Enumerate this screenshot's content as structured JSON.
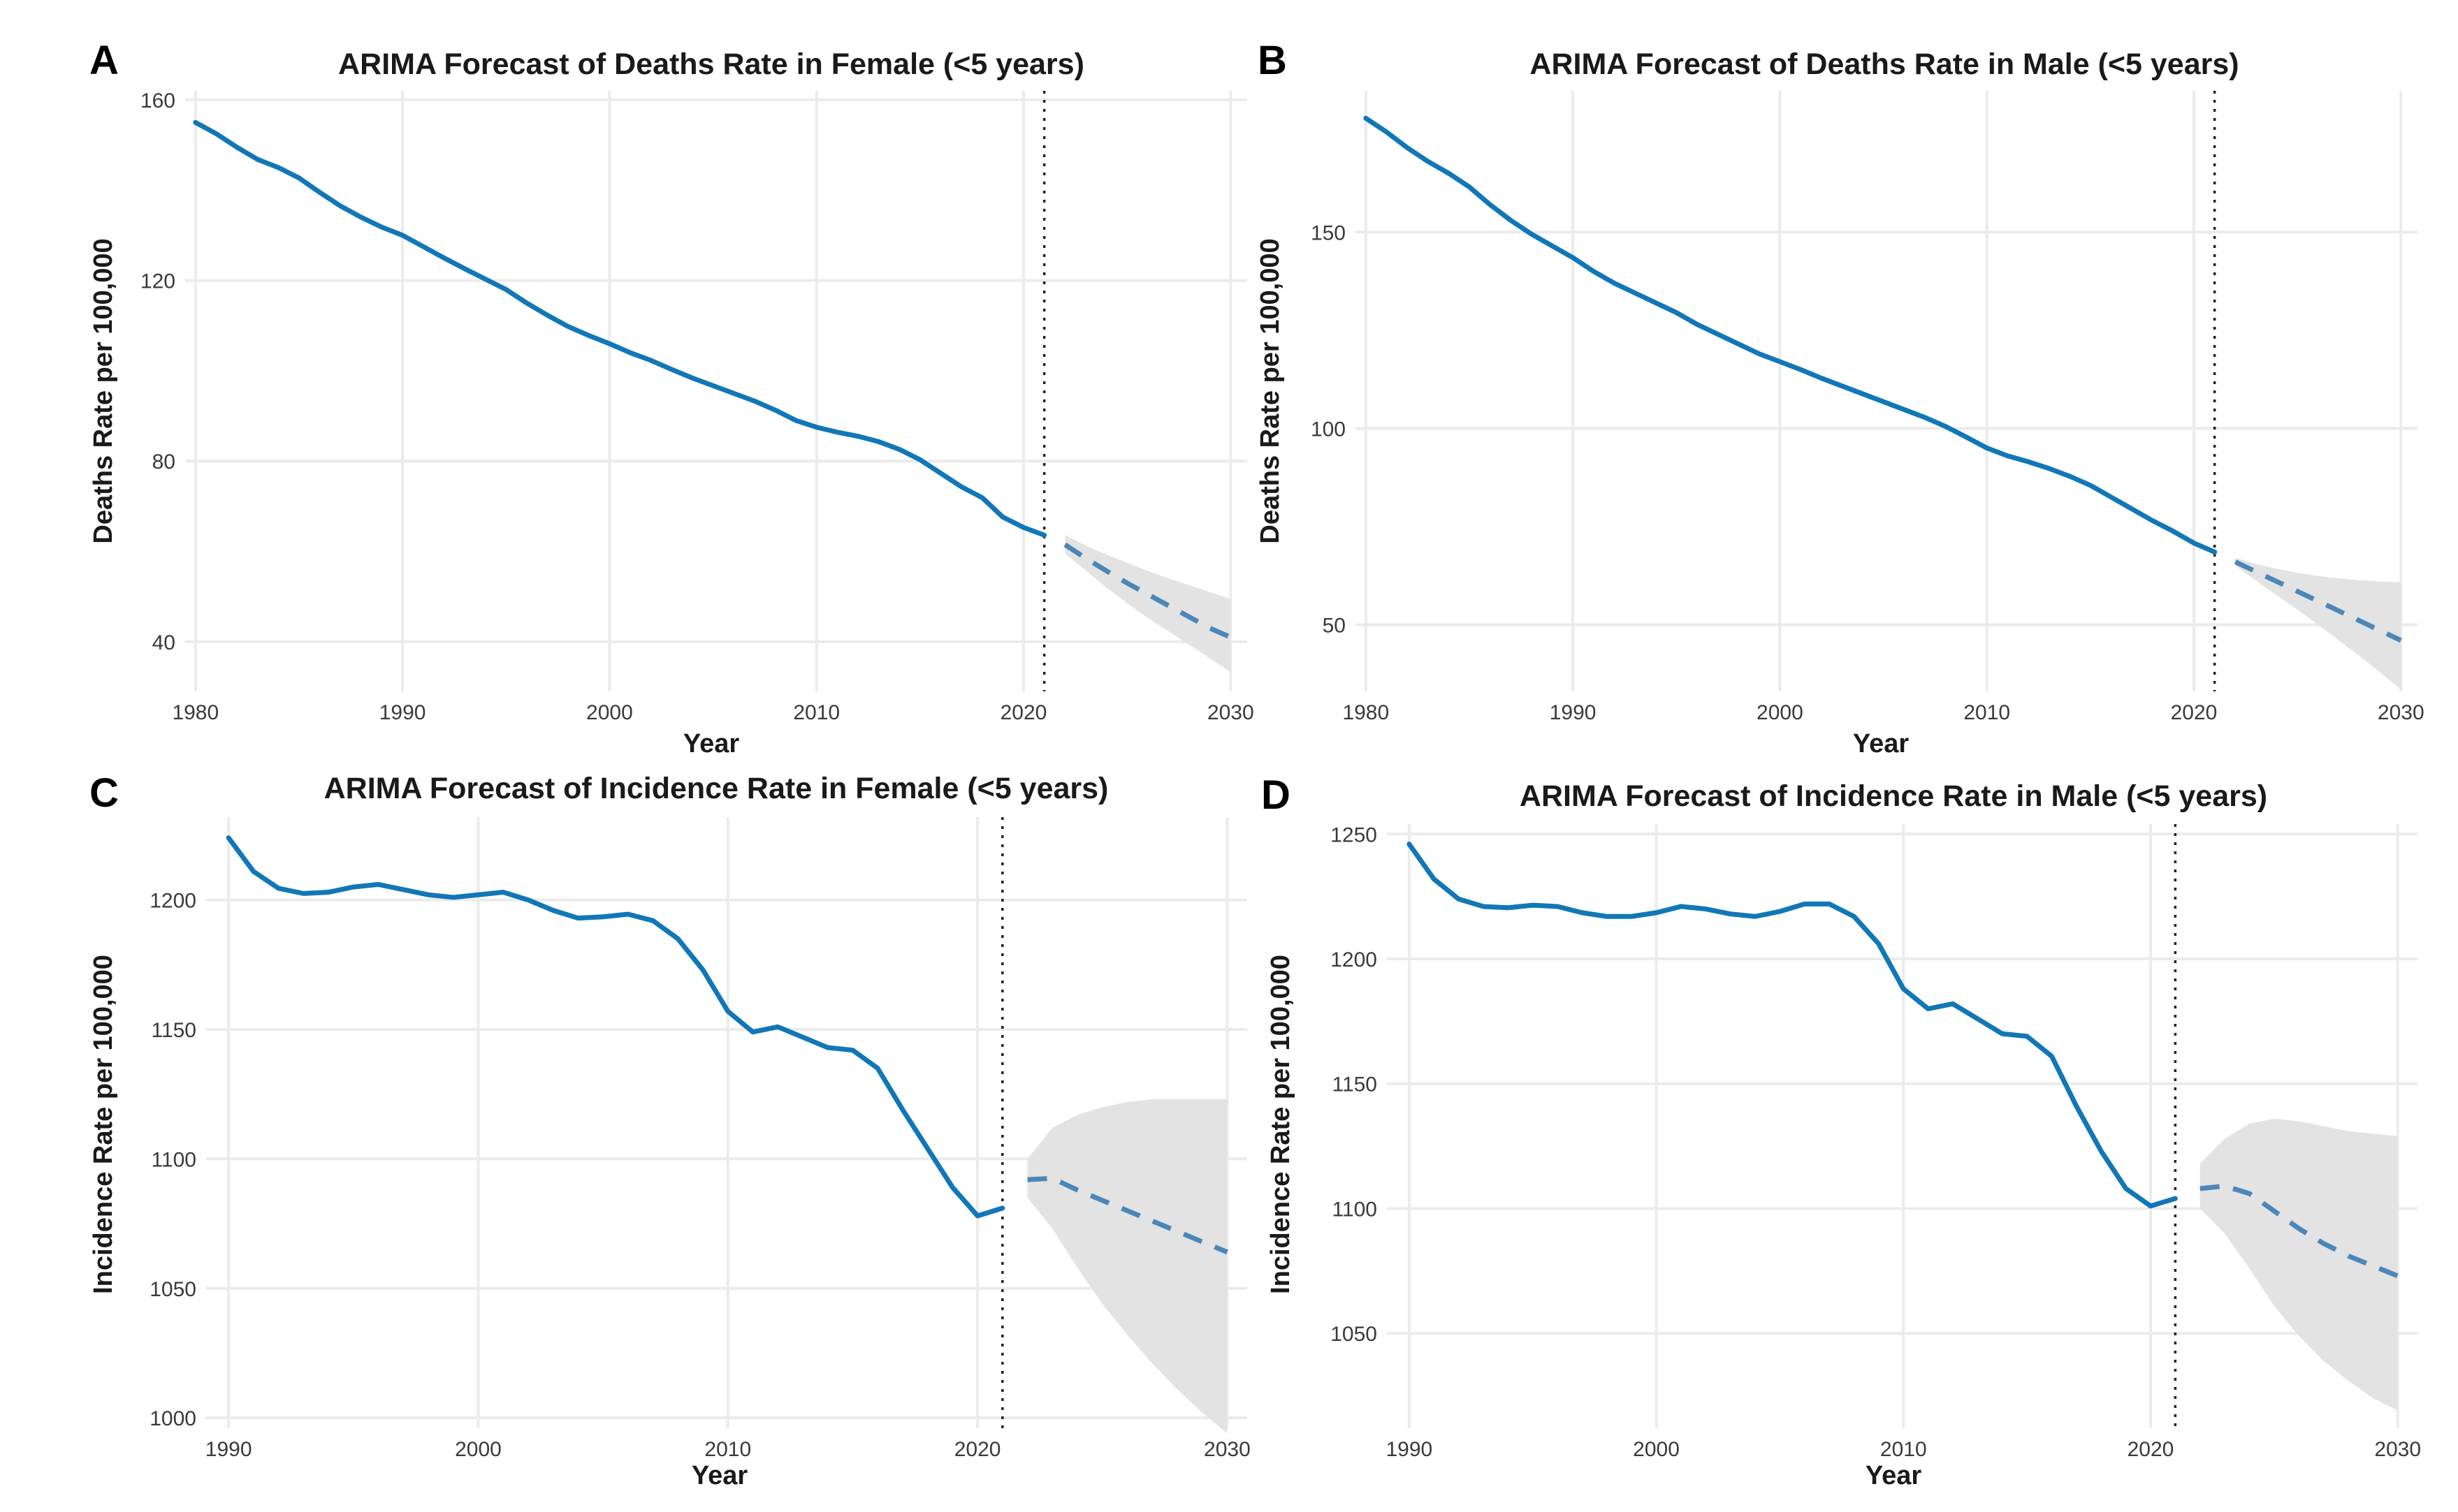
{
  "colors": {
    "history": "#1177b7",
    "forecast": "#4b86b8",
    "ci": "#e3e3e3"
  },
  "chart_data": [
    {
      "panel": "A",
      "type": "line",
      "title": "ARIMA Forecast of Deaths Rate in Female (<5 years)",
      "xlabel": "Year",
      "ylabel": "Deaths Rate per 100,000",
      "xlim": [
        1979.5,
        2030.8
      ],
      "ylim": [
        29,
        162
      ],
      "xticks": [
        1980,
        1990,
        2000,
        2010,
        2020,
        2030
      ],
      "yticks": [
        40,
        80,
        120,
        160
      ],
      "forecast_start": 2021,
      "history": {
        "x": [
          1980,
          1981,
          1982,
          1983,
          1984,
          1985,
          1986,
          1987,
          1988,
          1989,
          1990,
          1991,
          1992,
          1993,
          1994,
          1995,
          1996,
          1997,
          1998,
          1999,
          2000,
          2001,
          2002,
          2003,
          2004,
          2005,
          2006,
          2007,
          2008,
          2009,
          2010,
          2011,
          2012,
          2013,
          2014,
          2015,
          2016,
          2017,
          2018,
          2019,
          2020,
          2021
        ],
        "y": [
          155.0,
          152.5,
          149.5,
          146.8,
          145.0,
          142.7,
          139.5,
          136.5,
          134.0,
          131.8,
          130.0,
          127.5,
          125.0,
          122.6,
          120.3,
          118.0,
          115.0,
          112.3,
          109.8,
          107.8,
          106.0,
          104.0,
          102.3,
          100.3,
          98.4,
          96.7,
          95.0,
          93.3,
          91.3,
          89.0,
          87.5,
          86.4,
          85.5,
          84.3,
          82.6,
          80.3,
          77.3,
          74.3,
          71.9,
          67.6,
          65.3,
          63.6
        ]
      },
      "forecast": {
        "x": [
          2022,
          2023,
          2024,
          2025,
          2026,
          2027,
          2028,
          2029,
          2030
        ],
        "mean": [
          61.5,
          58.5,
          55.7,
          53.0,
          50.5,
          48.0,
          45.5,
          43.0,
          41.0
        ],
        "upper": [
          63.6,
          61.3,
          59.3,
          57.5,
          55.7,
          54.0,
          52.5,
          51.0,
          49.5
        ],
        "lower": [
          59.5,
          55.8,
          52.0,
          48.5,
          45.3,
          42.3,
          39.3,
          36.3,
          33.3
        ]
      }
    },
    {
      "panel": "B",
      "type": "line",
      "title": "ARIMA Forecast of Deaths Rate in Male (<5 years)",
      "xlabel": "Year",
      "ylabel": "Deaths Rate per 100,000",
      "xlim": [
        1979.5,
        2030.8
      ],
      "ylim": [
        33,
        186
      ],
      "xticks": [
        1980,
        1990,
        2000,
        2010,
        2020,
        2030
      ],
      "yticks": [
        50,
        100,
        150
      ],
      "forecast_start": 2021,
      "history": {
        "x": [
          1980,
          1981,
          1982,
          1983,
          1984,
          1985,
          1986,
          1987,
          1988,
          1989,
          1990,
          1991,
          1992,
          1993,
          1994,
          1995,
          1996,
          1997,
          1998,
          1999,
          2000,
          2001,
          2002,
          2003,
          2004,
          2005,
          2006,
          2007,
          2008,
          2009,
          2010,
          2011,
          2012,
          2013,
          2014,
          2015,
          2016,
          2017,
          2018,
          2019,
          2020,
          2021
        ],
        "y": [
          179.0,
          175.5,
          171.5,
          168.0,
          165.0,
          161.5,
          157.0,
          153.0,
          149.5,
          146.5,
          143.5,
          140.0,
          137.0,
          134.5,
          132.0,
          129.5,
          126.5,
          124.0,
          121.5,
          119.0,
          117.0,
          115.0,
          112.8,
          110.8,
          108.8,
          106.8,
          104.8,
          102.8,
          100.5,
          97.8,
          95.0,
          93.0,
          91.5,
          89.8,
          87.8,
          85.5,
          82.5,
          79.5,
          76.5,
          73.8,
          70.8,
          68.5
        ]
      },
      "forecast": {
        "x": [
          2022,
          2023,
          2024,
          2025,
          2026,
          2027,
          2028,
          2029,
          2030
        ],
        "mean": [
          66.0,
          63.5,
          61.0,
          58.5,
          56.0,
          53.5,
          51.0,
          48.5,
          46.0
        ],
        "upper": [
          67.0,
          65.5,
          64.3,
          63.2,
          62.4,
          61.8,
          61.3,
          61.0,
          60.8
        ],
        "lower": [
          65.0,
          61.2,
          57.5,
          53.8,
          50.0,
          46.0,
          42.0,
          37.8,
          33.5
        ]
      }
    },
    {
      "panel": "C",
      "type": "line",
      "title": "ARIMA Forecast of Incidence Rate in Female (<5 years)",
      "xlabel": "Year",
      "ylabel": "Incidence Rate per 100,000",
      "xlim": [
        1989.1,
        2030.8
      ],
      "ylim": [
        996,
        1232
      ],
      "xticks": [
        1990,
        2000,
        2010,
        2020,
        2030
      ],
      "yticks": [
        1000,
        1050,
        1100,
        1150,
        1200
      ],
      "forecast_start": 2021,
      "history": {
        "x": [
          1990,
          1991,
          1992,
          1993,
          1994,
          1995,
          1996,
          1997,
          1998,
          1999,
          2000,
          2001,
          2002,
          2003,
          2004,
          2005,
          2006,
          2007,
          2008,
          2009,
          2010,
          2011,
          2012,
          2013,
          2014,
          2015,
          2016,
          2017,
          2018,
          2019,
          2020,
          2021
        ],
        "y": [
          1224,
          1211,
          1204.5,
          1202.5,
          1203,
          1205,
          1206,
          1204,
          1202,
          1201,
          1202,
          1203,
          1200,
          1196,
          1193,
          1193.5,
          1194.5,
          1192,
          1185,
          1173,
          1157,
          1149,
          1151,
          1147,
          1143,
          1142,
          1135,
          1119,
          1104,
          1089,
          1078,
          1081
        ]
      },
      "forecast": {
        "x": [
          2022,
          2023,
          2024,
          2025,
          2026,
          2027,
          2028,
          2029,
          2030
        ],
        "mean": [
          1092,
          1092.5,
          1088,
          1084,
          1080,
          1076,
          1072,
          1068,
          1064
        ],
        "upper": [
          1100,
          1112,
          1117,
          1120,
          1122,
          1123,
          1123,
          1123,
          1123
        ],
        "lower": [
          1085,
          1073,
          1058,
          1044,
          1032,
          1021,
          1011,
          1002,
          994
        ]
      }
    },
    {
      "panel": "D",
      "type": "line",
      "title": "ARIMA Forecast of Incidence Rate in Male (<5 years)",
      "xlabel": "Year",
      "ylabel": "Incidence Rate per 100,000",
      "xlim": [
        1989.1,
        2030.8
      ],
      "ylim": [
        1012,
        1254
      ],
      "xticks": [
        1990,
        2000,
        2010,
        2020,
        2030
      ],
      "yticks": [
        1050,
        1100,
        1150,
        1200,
        1250
      ],
      "forecast_start": 2021,
      "history": {
        "x": [
          1990,
          1991,
          1992,
          1993,
          1994,
          1995,
          1996,
          1997,
          1998,
          1999,
          2000,
          2001,
          2002,
          2003,
          2004,
          2005,
          2006,
          2007,
          2008,
          2009,
          2010,
          2011,
          2012,
          2013,
          2014,
          2015,
          2016,
          2017,
          2018,
          2019,
          2020,
          2021
        ],
        "y": [
          1246,
          1232,
          1224,
          1221,
          1220.5,
          1221.5,
          1221,
          1218.5,
          1217,
          1217,
          1218.5,
          1221,
          1220,
          1218,
          1217,
          1219,
          1222,
          1222,
          1217,
          1206,
          1188,
          1180,
          1182,
          1176,
          1170,
          1169,
          1161,
          1141,
          1123,
          1108,
          1101,
          1104
        ]
      },
      "forecast": {
        "x": [
          2022,
          2023,
          2024,
          2025,
          2026,
          2027,
          2028,
          2029,
          2030
        ],
        "mean": [
          1108,
          1109,
          1106,
          1099,
          1092,
          1086,
          1081,
          1077,
          1073
        ],
        "upper": [
          1118,
          1128,
          1134,
          1136,
          1135,
          1133,
          1131,
          1130,
          1129
        ],
        "lower": [
          1100,
          1090,
          1076,
          1061,
          1049,
          1039,
          1031,
          1024,
          1019
        ]
      }
    }
  ]
}
